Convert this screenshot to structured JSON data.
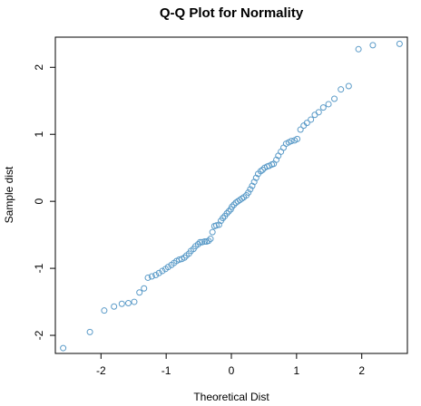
{
  "chart_data": {
    "type": "scatter",
    "title": "Q-Q Plot for Normality",
    "xlabel": "Theoretical Dist",
    "ylabel": "Sample dist",
    "xlim": [
      -2.7,
      2.7
    ],
    "ylim": [
      -2.27,
      2.45
    ],
    "xticks": [
      -2,
      -1,
      0,
      1,
      2
    ],
    "yticks": [
      -2,
      -1,
      0,
      1,
      2
    ],
    "xtick_labels": [
      "-2",
      "-1",
      "0",
      "1",
      "2"
    ],
    "ytick_labels": [
      "-2",
      "-1",
      "0",
      "1",
      "2"
    ],
    "grid": false,
    "marker_color": "#5b9bc8",
    "x": [
      -2.58,
      -2.17,
      -1.95,
      -1.8,
      -1.68,
      -1.58,
      -1.49,
      -1.41,
      -1.34,
      -1.28,
      -1.22,
      -1.16,
      -1.11,
      -1.06,
      -1.01,
      -0.97,
      -0.92,
      -0.88,
      -0.84,
      -0.8,
      -0.76,
      -0.72,
      -0.69,
      -0.65,
      -0.62,
      -0.58,
      -0.55,
      -0.51,
      -0.48,
      -0.45,
      -0.41,
      -0.38,
      -0.35,
      -0.32,
      -0.29,
      -0.26,
      -0.23,
      -0.19,
      -0.16,
      -0.13,
      -0.1,
      -0.07,
      -0.04,
      -0.01,
      0.01,
      0.04,
      0.07,
      0.1,
      0.13,
      0.16,
      0.19,
      0.23,
      0.26,
      0.29,
      0.32,
      0.35,
      0.38,
      0.41,
      0.45,
      0.48,
      0.51,
      0.55,
      0.58,
      0.62,
      0.65,
      0.69,
      0.72,
      0.76,
      0.8,
      0.84,
      0.88,
      0.92,
      0.97,
      1.01,
      1.06,
      1.11,
      1.16,
      1.22,
      1.28,
      1.34,
      1.41,
      1.49,
      1.58,
      1.68,
      1.8,
      1.95,
      2.17,
      2.58
    ],
    "y": [
      -2.19,
      -1.95,
      -1.63,
      -1.57,
      -1.53,
      -1.52,
      -1.5,
      -1.36,
      -1.3,
      -1.14,
      -1.12,
      -1.1,
      -1.07,
      -1.04,
      -1.01,
      -0.98,
      -0.95,
      -0.92,
      -0.89,
      -0.87,
      -0.86,
      -0.84,
      -0.81,
      -0.78,
      -0.74,
      -0.71,
      -0.67,
      -0.64,
      -0.61,
      -0.61,
      -0.6,
      -0.6,
      -0.59,
      -0.56,
      -0.46,
      -0.37,
      -0.36,
      -0.35,
      -0.29,
      -0.25,
      -0.22,
      -0.18,
      -0.15,
      -0.12,
      -0.08,
      -0.05,
      -0.02,
      0.0,
      0.02,
      0.04,
      0.06,
      0.09,
      0.13,
      0.18,
      0.23,
      0.29,
      0.35,
      0.41,
      0.45,
      0.47,
      0.5,
      0.52,
      0.53,
      0.55,
      0.56,
      0.62,
      0.68,
      0.74,
      0.8,
      0.86,
      0.88,
      0.9,
      0.91,
      0.93,
      1.07,
      1.13,
      1.17,
      1.22,
      1.29,
      1.33,
      1.4,
      1.45,
      1.53,
      1.67,
      1.72,
      2.27,
      2.33,
      2.35
    ]
  }
}
